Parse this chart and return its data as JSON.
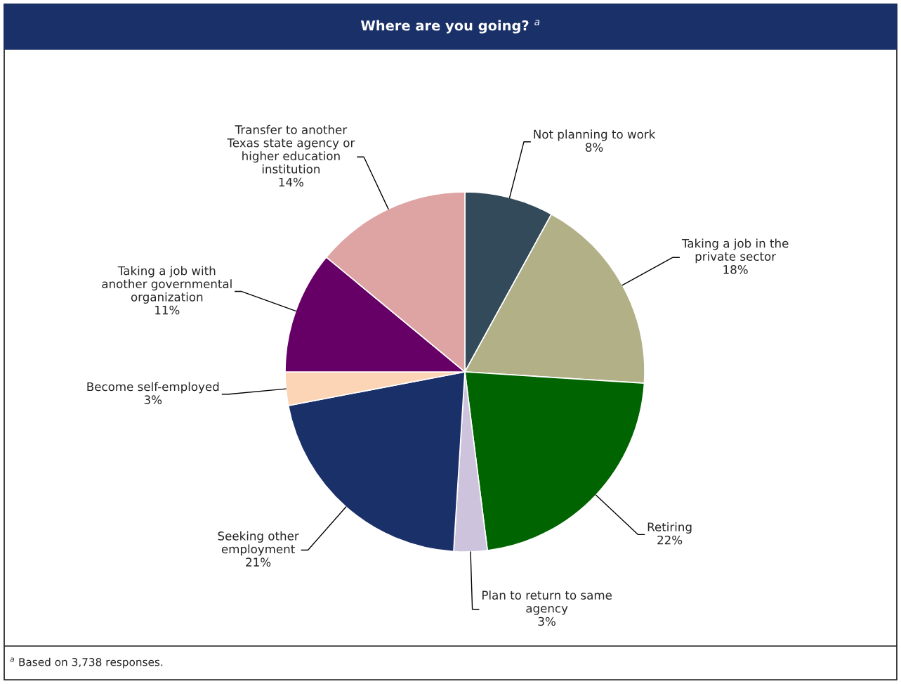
{
  "chart_data": {
    "type": "pie",
    "title": "Where are you going? $^{a}$",
    "categories": [
      "Not planning to work",
      "Taking a job in the\nprivate sector",
      "Retiring",
      "Plan to return to same\nagency",
      "Seeking other\nemployment",
      "Become self-employed",
      "Taking a job with\nanother governmental\norganization",
      "Transfer to another\nTexas state agency or\nhigher education\ninstitution"
    ],
    "values": [
      8,
      18,
      22,
      3,
      21,
      3,
      11,
      14
    ],
    "value_labels": [
      "8%",
      "18%",
      "22%",
      "3%",
      "21%",
      "3%",
      "11%",
      "14%"
    ],
    "colors": [
      "#334a5a",
      "#b2b087",
      "#006400",
      "#cdc3dc",
      "#1a3068",
      "#fbd5b5",
      "#660066",
      "#dea3a3"
    ],
    "annotations": [
      "$^{a}$ Based on 3,738 responses."
    ],
    "legend": false
  }
}
